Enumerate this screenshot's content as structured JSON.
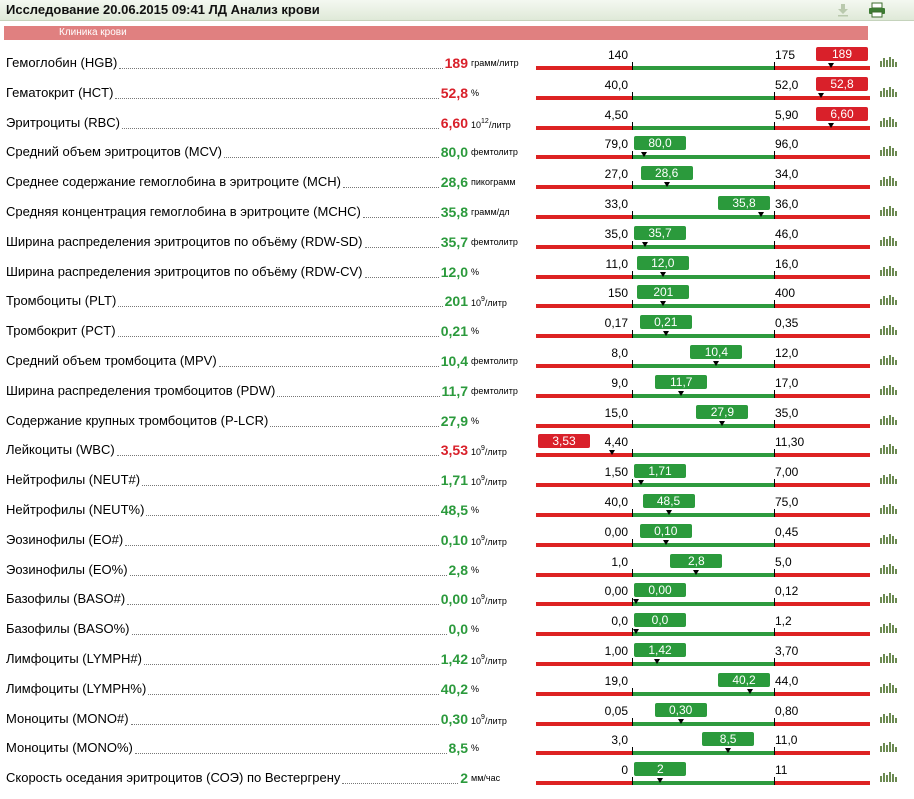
{
  "header": {
    "title": "Исследование 20.06.2015 09:41 ЛД Анализ крови",
    "icons": [
      "download-icon",
      "print-icon"
    ]
  },
  "section": {
    "label": "Клиника крови"
  },
  "colors": {
    "high": "#d9202a",
    "normal": "#2b9a3c",
    "bar_red": "#dd2222",
    "bar_green": "#2e9a3e",
    "header_bg": "#e4ecde"
  },
  "rows": [
    {
      "name": "Гемоглобин (HGB)",
      "value": "189",
      "unit": "грамм/литр",
      "low": "140",
      "high": "175",
      "status": "high"
    },
    {
      "name": "Гематокрит (HCT)",
      "value": "52,8",
      "unit": "%",
      "low": "40,0",
      "high": "52,0",
      "status": "high"
    },
    {
      "name": "Эритроциты (RBC)",
      "value": "6,60",
      "unit": "10",
      "unit_sup": "12",
      "unit_suffix": "/литр",
      "low": "4,50",
      "high": "5,90",
      "status": "high"
    },
    {
      "name": "Средний объем эритроцитов (MCV)",
      "value": "80,0",
      "unit": "фемтолитр",
      "low": "79,0",
      "high": "96,0",
      "status": "normal"
    },
    {
      "name": "Среднее содержание гемоглобина в эритроците (MCH)",
      "value": "28,6",
      "unit": "пикограмм",
      "low": "27,0",
      "high": "34,0",
      "status": "normal"
    },
    {
      "name": "Средняя концентрация гемоглобина в эритроците (MCHC)",
      "value": "35,8",
      "unit": "грамм/дл",
      "low": "33,0",
      "high": "36,0",
      "status": "normal"
    },
    {
      "name": "Ширина распределения эритроцитов по объёму (RDW-SD)",
      "value": "35,7",
      "unit": "фемтолитр",
      "low": "35,0",
      "high": "46,0",
      "status": "normal"
    },
    {
      "name": "Ширина распределения эритроцитов по объёму (RDW-CV)",
      "value": "12,0",
      "unit": "%",
      "low": "11,0",
      "high": "16,0",
      "status": "normal"
    },
    {
      "name": "Тромбоциты (PLT)",
      "value": "201",
      "unit": "10",
      "unit_sup": "9",
      "unit_suffix": "/литр",
      "low": "150",
      "high": "400",
      "status": "normal"
    },
    {
      "name": "Тромбокрит (PCT)",
      "value": "0,21",
      "unit": "%",
      "low": "0,17",
      "high": "0,35",
      "status": "normal"
    },
    {
      "name": "Средний объем тромбоцита (MPV)",
      "value": "10,4",
      "unit": "фемтолитр",
      "low": "8,0",
      "high": "12,0",
      "status": "normal"
    },
    {
      "name": "Ширина распределения тромбоцитов (PDW)",
      "value": "11,7",
      "unit": "фемтолитр",
      "low": "9,0",
      "high": "17,0",
      "status": "normal"
    },
    {
      "name": "Содержание крупных тромбоцитов (P-LCR)",
      "value": "27,9",
      "unit": "%",
      "low": "15,0",
      "high": "35,0",
      "status": "normal"
    },
    {
      "name": "Лейкоциты (WBC)",
      "value": "3,53",
      "unit": "10",
      "unit_sup": "9",
      "unit_suffix": "/литр",
      "low": "4,40",
      "high": "11,30",
      "status": "low"
    },
    {
      "name": "Нейтрофилы (NEUT#)",
      "value": "1,71",
      "unit": "10",
      "unit_sup": "9",
      "unit_suffix": "/литр",
      "low": "1,50",
      "high": "7,00",
      "status": "normal"
    },
    {
      "name": "Нейтрофилы (NEUT%)",
      "value": "48,5",
      "unit": "%",
      "low": "40,0",
      "high": "75,0",
      "status": "normal"
    },
    {
      "name": "Эозинофилы (EO#)",
      "value": "0,10",
      "unit": "10",
      "unit_sup": "9",
      "unit_suffix": "/литр",
      "low": "0,00",
      "high": "0,45",
      "status": "normal"
    },
    {
      "name": "Эозинофилы (EO%)",
      "value": "2,8",
      "unit": "%",
      "low": "1,0",
      "high": "5,0",
      "status": "normal"
    },
    {
      "name": "Базофилы (BASO#)",
      "value": "0,00",
      "unit": "10",
      "unit_sup": "9",
      "unit_suffix": "/литр",
      "low": "0,00",
      "high": "0,12",
      "status": "normal"
    },
    {
      "name": "Базофилы (BASO%)",
      "value": "0,0",
      "unit": "%",
      "low": "0,0",
      "high": "1,2",
      "status": "normal"
    },
    {
      "name": "Лимфоциты (LYMPH#)",
      "value": "1,42",
      "unit": "10",
      "unit_sup": "9",
      "unit_suffix": "/литр",
      "low": "1,00",
      "high": "3,70",
      "status": "normal"
    },
    {
      "name": "Лимфоциты (LYMPH%)",
      "value": "40,2",
      "unit": "%",
      "low": "19,0",
      "high": "44,0",
      "status": "normal"
    },
    {
      "name": "Моноциты (MONO#)",
      "value": "0,30",
      "unit": "10",
      "unit_sup": "9",
      "unit_suffix": "/литр",
      "low": "0,05",
      "high": "0,80",
      "status": "normal"
    },
    {
      "name": "Моноциты (MONO%)",
      "value": "8,5",
      "unit": "%",
      "low": "3,0",
      "high": "11,0",
      "status": "normal"
    },
    {
      "name": "Скорость оседания эритроцитов (СОЭ) по Вестергрену",
      "value": "2",
      "unit": "мм/час",
      "low": "0",
      "high": "11",
      "status": "normal"
    }
  ]
}
